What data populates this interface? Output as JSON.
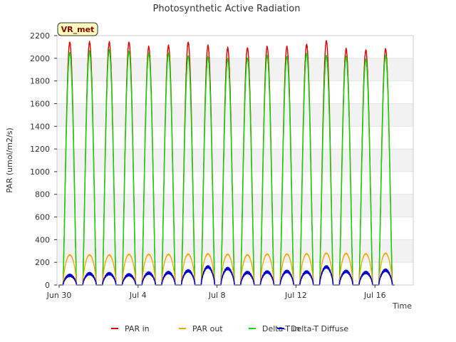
{
  "chart_data": {
    "type": "line",
    "title": "Photosynthetic Active Radiation",
    "xlabel": "Time",
    "ylabel": "PAR (umol/m2/s)",
    "badge": "VR_met",
    "ylim": [
      0,
      2200
    ],
    "xlim_days": [
      0,
      18
    ],
    "yticks": [
      0,
      200,
      400,
      600,
      800,
      1000,
      1200,
      1400,
      1600,
      1800,
      2000,
      2200
    ],
    "xticks": [
      {
        "day": 0,
        "label": "Jun 30"
      },
      {
        "day": 4,
        "label": "Jul 4"
      },
      {
        "day": 8,
        "label": "Jul 8"
      },
      {
        "day": 12,
        "label": "Jul 12"
      },
      {
        "day": 16,
        "label": "Jul 16"
      }
    ],
    "days": [
      "Jun 30",
      "Jul 1",
      "Jul 2",
      "Jul 3",
      "Jul 4",
      "Jul 5",
      "Jul 6",
      "Jul 7",
      "Jul 8",
      "Jul 9",
      "Jul 10",
      "Jul 11",
      "Jul 12",
      "Jul 13",
      "Jul 14",
      "Jul 15",
      "Jul 16"
    ],
    "series": [
      {
        "name": "PAR in",
        "color": "#e00000",
        "daily_peak": [
          2140,
          2140,
          2140,
          2140,
          2100,
          2110,
          2140,
          2110,
          2090,
          2090,
          2100,
          2100,
          2120,
          2150,
          2080,
          2070,
          2080
        ]
      },
      {
        "name": "PAR out",
        "color": "#ffa500",
        "daily_peak": [
          265,
          265,
          265,
          270,
          270,
          270,
          272,
          275,
          270,
          265,
          272,
          272,
          275,
          280,
          278,
          275,
          280
        ]
      },
      {
        "name": "Delta-T in",
        "color": "#00e000",
        "daily_peak": [
          2050,
          2060,
          2070,
          2060,
          2040,
          2040,
          2020,
          2010,
          1990,
          2000,
          2020,
          2010,
          2040,
          2020,
          2010,
          1990,
          2020
        ]
      },
      {
        "name": "Delta-T Diffuse",
        "color": "#0000cc",
        "daily_peak": [
          85,
          100,
          100,
          90,
          105,
          110,
          125,
          160,
          145,
          110,
          115,
          120,
          115,
          160,
          120,
          110,
          130
        ]
      }
    ]
  }
}
